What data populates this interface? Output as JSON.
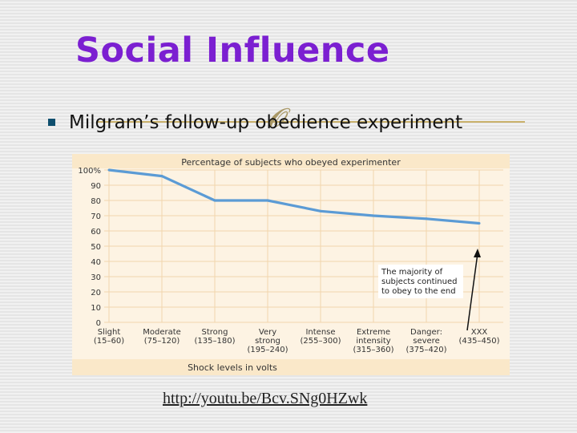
{
  "slide": {
    "title": "Social Influence",
    "bullet": "Milgram’s follow-up obedience experiment",
    "link": "http://youtu.be/Bcv.SNg0HZwk"
  },
  "colors": {
    "title": "#7b1fd1",
    "line": "#5b9bd5",
    "chart_bg": "#fdf3e3",
    "grid": "#f1d6ad"
  },
  "chart_data": {
    "type": "line",
    "title": "Percentage of subjects who obeyed experimenter",
    "xlabel": "Shock levels in volts",
    "ylabel": "",
    "ylim": [
      0,
      100
    ],
    "yticks": [
      "0",
      "10",
      "20",
      "30",
      "40",
      "50",
      "60",
      "70",
      "80",
      "90",
      "100%"
    ],
    "categories": [
      {
        "name": "Slight",
        "range": "(15–60)"
      },
      {
        "name": "Moderate",
        "range": "(75–120)"
      },
      {
        "name": "Strong",
        "range": "(135–180)"
      },
      {
        "name": "Very strong",
        "range": "(195–240)"
      },
      {
        "name": "Intense",
        "range": "(255–300)"
      },
      {
        "name": "Extreme intensity",
        "range": "(315–360)"
      },
      {
        "name": "Danger: severe",
        "range": "(375–420)"
      },
      {
        "name": "XXX",
        "range": "(435–450)"
      }
    ],
    "x": [
      0,
      1,
      2,
      3,
      4,
      5,
      6,
      7
    ],
    "y": [
      100,
      96,
      80,
      80,
      73,
      70,
      68,
      65
    ],
    "annotation": "The majority of subjects continued to obey to the end",
    "grid": true
  }
}
